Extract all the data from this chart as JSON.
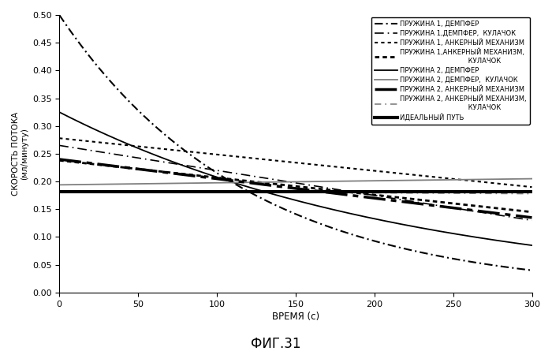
{
  "title_bottom": "ФИГ.31",
  "xlabel": "ВРЕМЯ (с)",
  "ylabel": "СКОРОСТЬ ПОТОКА\n(мл/минуту)",
  "xlim": [
    0,
    300
  ],
  "ylim": [
    0,
    0.5
  ],
  "yticks": [
    0,
    0.05,
    0.1,
    0.15,
    0.2,
    0.25,
    0.3,
    0.35,
    0.4,
    0.45,
    0.5
  ],
  "xticks": [
    0,
    50,
    100,
    150,
    200,
    250,
    300
  ],
  "ideal_value": 0.182,
  "curves": [
    {
      "label": "ПРУЖИНА 1, ДЕМПФЕР",
      "color": "black",
      "linewidth": 1.5,
      "style": "dashdot_fine",
      "x0": 0.5,
      "x300": 0.04,
      "shape": "exp"
    },
    {
      "label": "ПРУЖИНА 1,ДЕМПФЕР,  КУЛАЧОК",
      "color": "black",
      "linewidth": 1.2,
      "style": "dashdot_coarse",
      "x0": 0.265,
      "x300": 0.13,
      "shape": "linear"
    },
    {
      "label": "ПРУЖИНА 1, АНКЕРНЫЙ МЕХАНИЗМ",
      "color": "black",
      "linewidth": 1.5,
      "style": "dotted_thin",
      "x0": 0.278,
      "x300": 0.19,
      "shape": "linear"
    },
    {
      "label": "ПРУЖИНА 1,АНКЕРНЫЙ МЕХАНИЗМ,\n                                 КУЛАЧОК",
      "color": "black",
      "linewidth": 2.0,
      "style": "dotted_thick",
      "x0": 0.238,
      "x300": 0.145,
      "shape": "linear"
    },
    {
      "label": "ПРУЖИНА 2, ДЕМПФЕР",
      "color": "black",
      "linewidth": 1.3,
      "style": "solid",
      "x0": 0.325,
      "x300": 0.085,
      "shape": "exp_mild"
    },
    {
      "label": "ПРУЖИНА 2, ДЕМПФЕР,  КУЛАЧОК",
      "color": "gray",
      "linewidth": 1.3,
      "style": "solid",
      "x0": 0.194,
      "x300": 0.205,
      "shape": "slight_up"
    },
    {
      "label": "ПРУЖИНА 2, АНКЕРНЫЙ МЕХАНИЗМ",
      "color": "black",
      "linewidth": 2.5,
      "style": "dashdot_bold",
      "x0": 0.24,
      "x300": 0.135,
      "shape": "linear"
    },
    {
      "label": "ПРУЖИНА 2, АНКЕРНЫЙ МЕХАНИЗМ,\n                                 КУЛАЧОК",
      "color": "gray",
      "linewidth": 1.2,
      "style": "dashdot_gray",
      "x0": 0.183,
      "x300": 0.178,
      "shape": "near_flat"
    },
    {
      "label": "ИДЕАЛЬНЫЙ ПУТЬ",
      "color": "black",
      "linewidth": 3.0,
      "style": "solid_thick",
      "x0": 0.182,
      "x300": 0.182,
      "shape": "flat"
    }
  ]
}
